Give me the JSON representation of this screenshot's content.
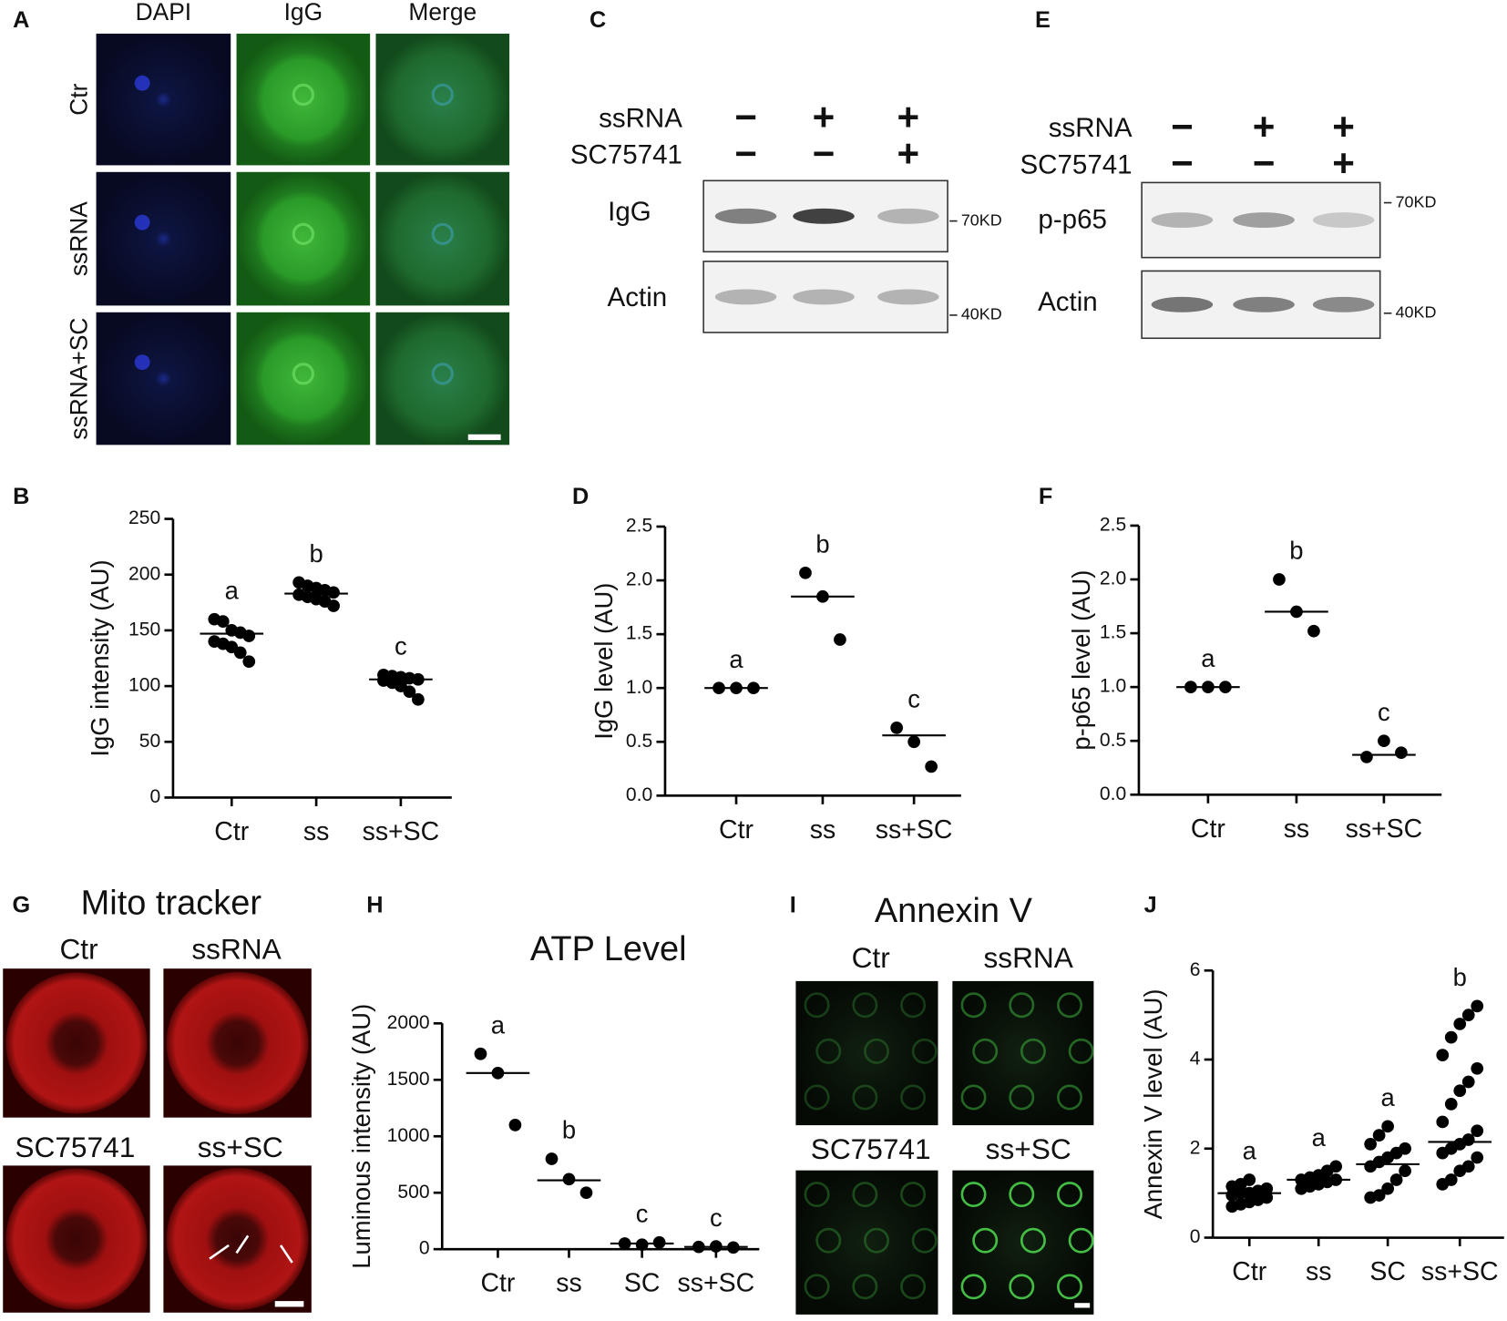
{
  "micrographs": {
    "A": {
      "letter": "A",
      "columns": [
        "DAPI",
        "IgG",
        "Merge"
      ],
      "rows": [
        "Ctr",
        "ssRNA",
        "ssRNA+SC"
      ]
    },
    "G": {
      "letter": "G",
      "title": "Mito tracker",
      "labels": [
        "Ctr",
        "ssRNA",
        "SC75741",
        "ss+SC"
      ]
    },
    "I": {
      "letter": "I",
      "title": "Annexin V",
      "labels": [
        "Ctr",
        "ssRNA",
        "SC75741",
        "ss+SC"
      ]
    }
  },
  "blots": [
    {
      "letter": "C",
      "treatments": [
        {
          "name": "ssRNA",
          "signs": [
            "−",
            "+",
            "+"
          ]
        },
        {
          "name": "SC75741",
          "signs": [
            "−",
            "−",
            "+"
          ]
        }
      ],
      "bands": [
        "IgG",
        "Actin"
      ],
      "markers": [
        "70KD",
        "40KD"
      ]
    },
    {
      "letter": "E",
      "treatments": [
        {
          "name": "ssRNA",
          "signs": [
            "−",
            "+",
            "+"
          ]
        },
        {
          "name": "SC75741",
          "signs": [
            "−",
            "−",
            "+"
          ]
        }
      ],
      "bands": [
        "p-p65",
        "Actin"
      ],
      "markers": [
        "70KD",
        "40KD"
      ]
    }
  ],
  "chart_data": [
    {
      "type": "dotplot",
      "letter": "B",
      "ylabel": "IgG intensity (AU)",
      "categories": [
        "Ctr",
        "ss",
        "ss+SC"
      ],
      "points": [
        [
          160,
          158,
          150,
          148,
          145,
          140,
          138,
          135,
          130,
          122
        ],
        [
          193,
          190,
          188,
          186,
          184,
          182,
          180,
          178,
          176,
          172
        ],
        [
          110,
          109,
          108,
          107,
          106,
          105,
          103,
          100,
          95,
          88
        ]
      ],
      "means": [
        147,
        183,
        106
      ],
      "significance": [
        "a",
        "b",
        "c"
      ],
      "ylim": [
        0,
        250
      ],
      "yticks": [
        0,
        50,
        100,
        150,
        200,
        250
      ]
    },
    {
      "type": "dotplot",
      "letter": "D",
      "ylabel": "IgG level (AU)",
      "categories": [
        "Ctr",
        "ss",
        "ss+SC"
      ],
      "points": [
        [
          1.0,
          1.0,
          1.0
        ],
        [
          2.07,
          1.85,
          1.45
        ],
        [
          0.63,
          0.5,
          0.27
        ]
      ],
      "means": [
        1.0,
        1.85,
        0.56
      ],
      "significance": [
        "a",
        "b",
        "c"
      ],
      "ylim": [
        0,
        2.5
      ],
      "yticks": [
        {
          "value": 0,
          "label": "0.0"
        },
        {
          "value": 0.5,
          "label": "0.5"
        },
        {
          "value": 1,
          "label": "1.0"
        },
        {
          "value": 1.5,
          "label": "1.5"
        },
        {
          "value": 2,
          "label": "2.0"
        },
        {
          "value": 2.5,
          "label": "2.5"
        }
      ]
    },
    {
      "type": "dotplot",
      "letter": "F",
      "ylabel": "p-p65 level (AU)",
      "categories": [
        "Ctr",
        "ss",
        "ss+SC"
      ],
      "points": [
        [
          1.0,
          1.0,
          1.0
        ],
        [
          2.0,
          1.7,
          1.52
        ],
        [
          0.35,
          0.5,
          0.39
        ]
      ],
      "means": [
        1.0,
        1.7,
        0.37
      ],
      "significance": [
        "a",
        "b",
        "c"
      ],
      "ylim": [
        0,
        2.5
      ],
      "yticks": [
        {
          "value": 0,
          "label": "0.0"
        },
        {
          "value": 0.5,
          "label": "0.5"
        },
        {
          "value": 1,
          "label": "1.0"
        },
        {
          "value": 1.5,
          "label": "1.5"
        },
        {
          "value": 2,
          "label": "2.0"
        },
        {
          "value": 2.5,
          "label": "2.5"
        }
      ]
    },
    {
      "type": "dotplot",
      "letter": "H",
      "title": "ATP Level",
      "ylabel": "Luminous intensity (AU)",
      "categories": [
        "Ctr",
        "ss",
        "SC",
        "ss+SC"
      ],
      "points": [
        [
          1730,
          1560,
          1100
        ],
        [
          800,
          620,
          500
        ],
        [
          50,
          40,
          60
        ],
        [
          20,
          25,
          15
        ]
      ],
      "means": [
        1560,
        610,
        50,
        20
      ],
      "significance": [
        "a",
        "b",
        "c",
        "c"
      ],
      "ylim": [
        0,
        2000
      ],
      "yticks": [
        0,
        500,
        1000,
        1500,
        2000
      ]
    },
    {
      "type": "dotplot",
      "letter": "J",
      "ylabel": "Annexin V level (AU)",
      "categories": [
        "Ctr",
        "ss",
        "SC",
        "ss+SC"
      ],
      "points": [
        [
          0.7,
          0.75,
          0.8,
          0.85,
          0.9,
          0.95,
          1.0,
          1.0,
          1.05,
          1.1,
          1.15,
          1.2,
          1.3
        ],
        [
          1.1,
          1.15,
          1.2,
          1.25,
          1.3,
          1.3,
          1.35,
          1.4,
          1.5,
          1.6
        ],
        [
          0.9,
          0.95,
          1.1,
          1.3,
          1.5,
          1.6,
          1.7,
          1.8,
          1.9,
          2.0,
          2.1,
          2.3,
          2.5
        ],
        [
          1.2,
          1.3,
          1.5,
          1.6,
          1.8,
          1.9,
          2.0,
          2.1,
          2.2,
          2.4,
          2.6,
          3.0,
          3.3,
          3.5,
          3.8,
          4.1,
          4.5,
          4.8,
          5.0,
          5.2
        ]
      ],
      "means": [
        1.0,
        1.3,
        1.65,
        2.15
      ],
      "significance": [
        "a",
        "a",
        "a",
        "b"
      ],
      "ylim": [
        0,
        6
      ],
      "yticks": [
        0,
        2,
        4,
        6
      ]
    }
  ]
}
